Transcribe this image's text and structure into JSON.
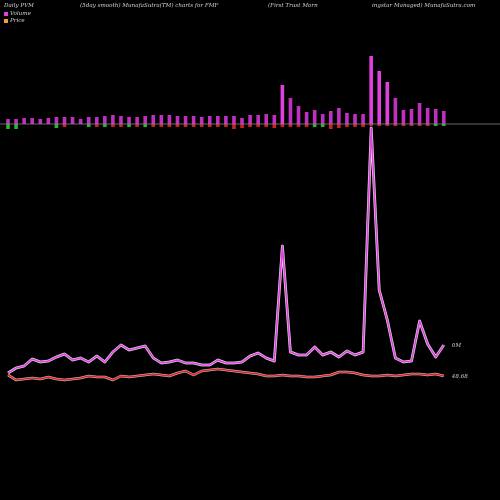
{
  "header": {
    "left": "Daily PVM",
    "center_left": "(5day smooth) MunafaSutra(TM) charts for FMF",
    "center_right": "(First Trust Morn",
    "right": "ingstar Managed) MunafaSutra.com"
  },
  "legend": {
    "volume": "Volume",
    "price": "Price"
  },
  "colors": {
    "volume_line": "#e040e0",
    "price_line": "#e02020",
    "bar_up": "#c030c0",
    "bar_up_big": "#e040e0",
    "bar_green": "#22bb22",
    "bar_red": "#cc2222",
    "baseline": "#888888"
  },
  "chart_data": {
    "type": "line",
    "series": [
      {
        "name": "Volume",
        "y_label": "0M",
        "values": [
          373,
          368,
          366,
          359,
          362,
          361,
          357,
          354,
          360,
          358,
          362,
          356,
          362,
          352,
          345,
          350,
          348,
          346,
          358,
          363,
          362,
          360,
          363,
          363,
          365,
          365,
          360,
          363,
          363,
          362,
          356,
          353,
          358,
          361,
          246,
          352,
          355,
          355,
          347,
          355,
          352,
          357,
          351,
          355,
          352,
          128,
          290,
          320,
          358,
          362,
          361,
          321,
          344,
          357,
          345
        ]
      },
      {
        "name": "Price",
        "y_label": "48.68",
        "values": [
          375,
          380,
          379,
          378,
          379,
          377,
          379,
          380,
          379,
          378,
          376,
          377,
          377,
          380,
          376,
          377,
          376,
          375,
          374,
          375,
          376,
          373,
          371,
          375,
          371,
          370,
          369,
          370,
          371,
          372,
          373,
          374,
          376,
          376,
          375,
          376,
          376,
          377,
          377,
          376,
          375,
          372,
          372,
          373,
          375,
          376,
          376,
          375,
          376,
          375,
          374,
          374,
          375,
          374,
          376
        ]
      }
    ],
    "bars": {
      "top_heights": [
        5,
        5,
        6,
        6,
        5,
        6,
        7,
        7,
        7,
        5,
        7,
        7,
        8,
        9,
        8,
        7,
        7,
        8,
        9,
        9,
        9,
        8,
        8,
        8,
        7,
        8,
        8,
        8,
        8,
        6,
        9,
        9,
        10,
        9,
        39,
        26,
        18,
        12,
        14,
        10,
        13,
        16,
        11,
        10,
        10,
        68,
        53,
        42,
        26,
        14,
        15,
        21,
        16,
        15,
        13
      ],
      "bottom_heights": [
        5,
        5,
        0,
        0,
        0,
        0,
        4,
        3,
        0,
        0,
        3,
        3,
        3,
        3,
        3,
        3,
        3,
        3,
        3,
        3,
        3,
        3,
        3,
        3,
        3,
        3,
        3,
        3,
        5,
        4,
        3,
        3,
        3,
        4,
        3,
        3,
        3,
        3,
        3,
        3,
        5,
        4,
        3,
        3,
        3,
        2,
        2,
        2,
        2,
        2,
        2,
        2,
        2,
        2,
        2
      ],
      "bottom_colors": [
        "green",
        "green",
        "none",
        "none",
        "none",
        "none",
        "green",
        "red",
        "none",
        "none",
        "green",
        "red",
        "green",
        "red",
        "red",
        "green",
        "red",
        "green",
        "red",
        "red",
        "red",
        "red",
        "red",
        "red",
        "red",
        "red",
        "red",
        "red",
        "red",
        "red",
        "red",
        "red",
        "red",
        "red",
        "red",
        "red",
        "red",
        "red",
        "green",
        "green",
        "red",
        "red",
        "red",
        "red",
        "red",
        "red",
        "red",
        "red",
        "red",
        "red",
        "red",
        "red",
        "red",
        "green",
        "green"
      ]
    }
  }
}
